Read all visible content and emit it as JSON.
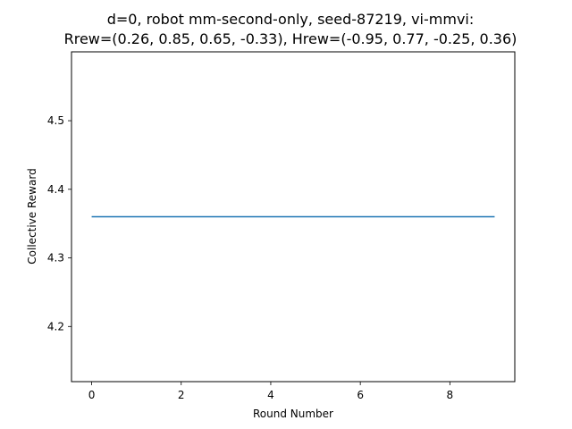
{
  "chart_data": {
    "type": "line",
    "title_lines": [
      "d=0, robot mm-second-only, seed-87219, vi-mmvi:",
      "Rrew=(0.26, 0.85, 0.65, -0.33), Hrew=(-0.95, 0.77, -0.25, 0.36)"
    ],
    "xlabel": "Round Number",
    "ylabel": "Collective Reward",
    "xlim": [
      -0.45,
      9.45
    ],
    "ylim": [
      4.1196,
      4.6004
    ],
    "x_ticks": [
      0,
      2,
      4,
      6,
      8
    ],
    "x_tick_labels": [
      "0",
      "2",
      "4",
      "6",
      "8"
    ],
    "y_ticks": [
      4.2,
      4.3,
      4.4,
      4.5
    ],
    "y_tick_labels": [
      "4.2",
      "4.3",
      "4.4",
      "4.5"
    ],
    "grid": false,
    "legend": "none",
    "series": [
      {
        "color": "#1f77b4",
        "x": [
          0,
          1,
          2,
          3,
          4,
          5,
          6,
          7,
          8,
          9
        ],
        "y": [
          4.36,
          4.36,
          4.36,
          4.36,
          4.36,
          4.36,
          4.36,
          4.36,
          4.36,
          4.36
        ]
      }
    ]
  }
}
